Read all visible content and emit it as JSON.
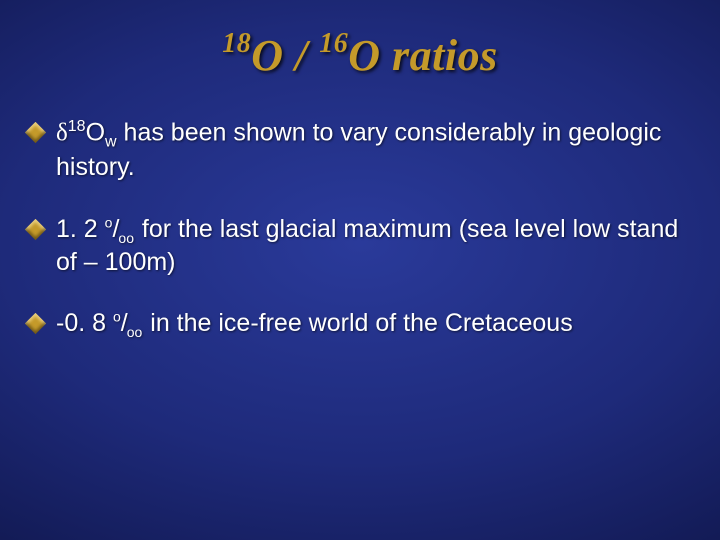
{
  "slide": {
    "background": {
      "inner_color": "#2a3a9a",
      "mid_color": "#1e2a7a",
      "outer_color": "#0a0f3a"
    },
    "title": {
      "sup1": "18",
      "o1": "O",
      "slash": " / ",
      "sup2": "16",
      "o2": "O",
      "word": " ratios",
      "color": "#c49a2a",
      "font_size_pt": 33,
      "font_style": "bold italic"
    },
    "bullets": [
      {
        "segments": {
          "delta": "δ",
          "sup": "18",
          "o": "O",
          "sub": "w",
          "rest": " has been shown to vary considerably in geologic history."
        }
      },
      {
        "segments": {
          "lead": "1. 2 ",
          "permil_sup": "o",
          "permil_slash": "/",
          "permil_sub": "oo",
          "rest": " for the last glacial maximum (sea level low stand of – 100m)"
        }
      },
      {
        "segments": {
          "lead": "-0. 8 ",
          "permil_sup": "o",
          "permil_slash": "/",
          "permil_sub": "oo",
          "rest": " in the ice-free world of the Cretaceous"
        }
      }
    ],
    "bullet_style": {
      "marker_color": "#c49a2a",
      "text_color": "#ffffff",
      "font_size_pt": 19,
      "font_family": "Arial"
    }
  }
}
